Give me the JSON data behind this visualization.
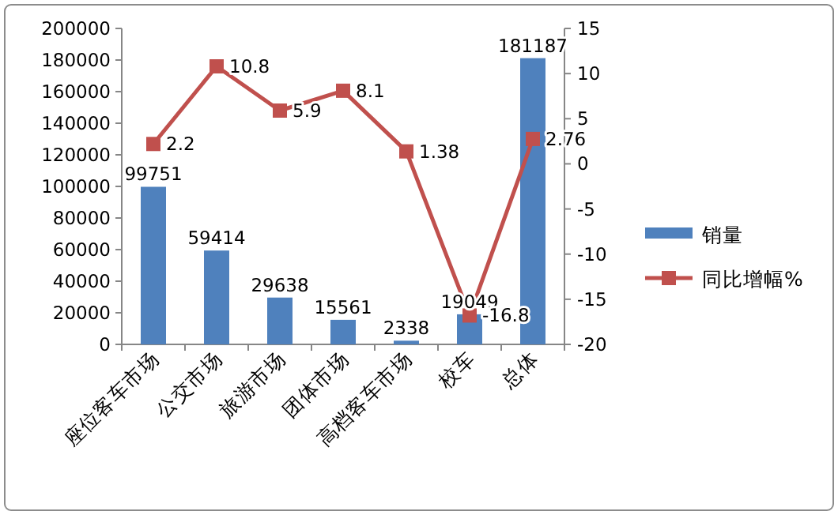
{
  "chart_data": {
    "type": "bar",
    "categories": [
      "座位客车市场",
      "公交市场",
      "旅游市场",
      "团体市场",
      "高档客车市场",
      "校车",
      "总体"
    ],
    "series": [
      {
        "name": "销量",
        "color": "#4f81bd",
        "values": [
          99751,
          59414,
          29638,
          15561,
          2338,
          19049,
          181187
        ]
      },
      {
        "name": "同比增幅%",
        "type": "line",
        "axis": "y2",
        "color": "#c0504d",
        "values": [
          2.2,
          10.8,
          5.9,
          8.1,
          1.38,
          -16.8,
          2.76
        ]
      }
    ],
    "ylim": [
      0,
      200000
    ],
    "yticks": [
      0,
      20000,
      40000,
      60000,
      80000,
      100000,
      120000,
      140000,
      160000,
      180000,
      200000
    ],
    "y2lim": [
      -20,
      15
    ],
    "y2ticks": [
      -20,
      -15,
      -10,
      -5,
      0,
      5,
      10,
      15
    ],
    "data_labels": true,
    "legend": "right",
    "marker": "square"
  }
}
